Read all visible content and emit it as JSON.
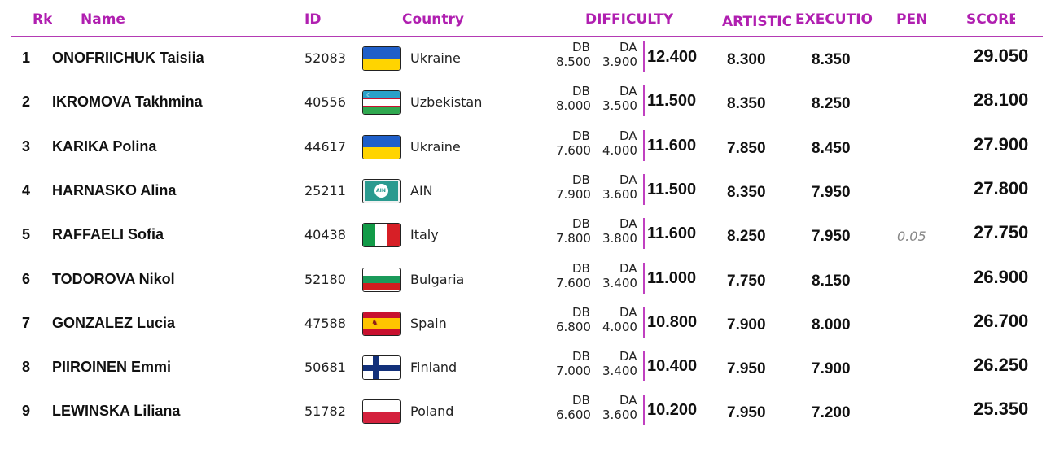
{
  "header": {
    "rk": "Rk",
    "name": "Name",
    "id": "ID",
    "country": "Country",
    "difficulty": "DIFFICULTY",
    "artistic": "ARTISTIC",
    "execution": "EXECUTIOI",
    "pen": "PEN",
    "score": "SCORE"
  },
  "colors": {
    "header_text": "#b01fb0",
    "divider": "#b43ab4",
    "difficulty_bar": "#c040c0"
  },
  "rows": [
    {
      "rk": "1",
      "name": "ONOFRIICHUK Taisiia",
      "id": "52083",
      "flag": "ukraine-flag",
      "country": "Ukraine",
      "db_label": "DB",
      "da_label": "DA",
      "db": "8.500",
      "da": "3.900",
      "difficulty": "12.400",
      "artistic": "8.300",
      "execution": "8.350",
      "pen": "",
      "score": "29.050"
    },
    {
      "rk": "2",
      "name": "IKROMOVA Takhmina",
      "id": "40556",
      "flag": "uzbekistan-flag",
      "country": "Uzbekistan",
      "db_label": "DB",
      "da_label": "DA",
      "db": "8.000",
      "da": "3.500",
      "difficulty": "11.500",
      "artistic": "8.350",
      "execution": "8.250",
      "pen": "",
      "score": "28.100"
    },
    {
      "rk": "3",
      "name": "KARIKA Polina",
      "id": "44617",
      "flag": "ukraine-flag",
      "country": "Ukraine",
      "db_label": "DB",
      "da_label": "DA",
      "db": "7.600",
      "da": "4.000",
      "difficulty": "11.600",
      "artistic": "7.850",
      "execution": "8.450",
      "pen": "",
      "score": "27.900"
    },
    {
      "rk": "4",
      "name": "HARNASKO Alina",
      "id": "25211",
      "flag": "ain-flag",
      "country": "AIN",
      "db_label": "DB",
      "da_label": "DA",
      "db": "7.900",
      "da": "3.600",
      "difficulty": "11.500",
      "artistic": "8.350",
      "execution": "7.950",
      "pen": "",
      "score": "27.800"
    },
    {
      "rk": "5",
      "name": "RAFFAELI Sofia",
      "id": "40438",
      "flag": "italy-flag",
      "country": "Italy",
      "db_label": "DB",
      "da_label": "DA",
      "db": "7.800",
      "da": "3.800",
      "difficulty": "11.600",
      "artistic": "8.250",
      "execution": "7.950",
      "pen": "0.05",
      "score": "27.750"
    },
    {
      "rk": "6",
      "name": "TODOROVA Nikol",
      "id": "52180",
      "flag": "bulgaria-flag",
      "country": "Bulgaria",
      "db_label": "DB",
      "da_label": "DA",
      "db": "7.600",
      "da": "3.400",
      "difficulty": "11.000",
      "artistic": "7.750",
      "execution": "8.150",
      "pen": "",
      "score": "26.900"
    },
    {
      "rk": "7",
      "name": "GONZALEZ Lucia",
      "id": "47588",
      "flag": "spain-flag",
      "country": "Spain",
      "db_label": "DB",
      "da_label": "DA",
      "db": "6.800",
      "da": "4.000",
      "difficulty": "10.800",
      "artistic": "7.900",
      "execution": "8.000",
      "pen": "",
      "score": "26.700"
    },
    {
      "rk": "8",
      "name": "PIIROINEN Emmi",
      "id": "50681",
      "flag": "finland-flag",
      "country": "Finland",
      "db_label": "DB",
      "da_label": "DA",
      "db": "7.000",
      "da": "3.400",
      "difficulty": "10.400",
      "artistic": "7.950",
      "execution": "7.900",
      "pen": "",
      "score": "26.250"
    },
    {
      "rk": "9",
      "name": "LEWINSKA Liliana",
      "id": "51782",
      "flag": "poland-flag",
      "country": "Poland",
      "db_label": "DB",
      "da_label": "DA",
      "db": "6.600",
      "da": "3.600",
      "difficulty": "10.200",
      "artistic": "7.950",
      "execution": "7.200",
      "pen": "",
      "score": "25.350"
    }
  ],
  "ain_flag_text": "AIN"
}
